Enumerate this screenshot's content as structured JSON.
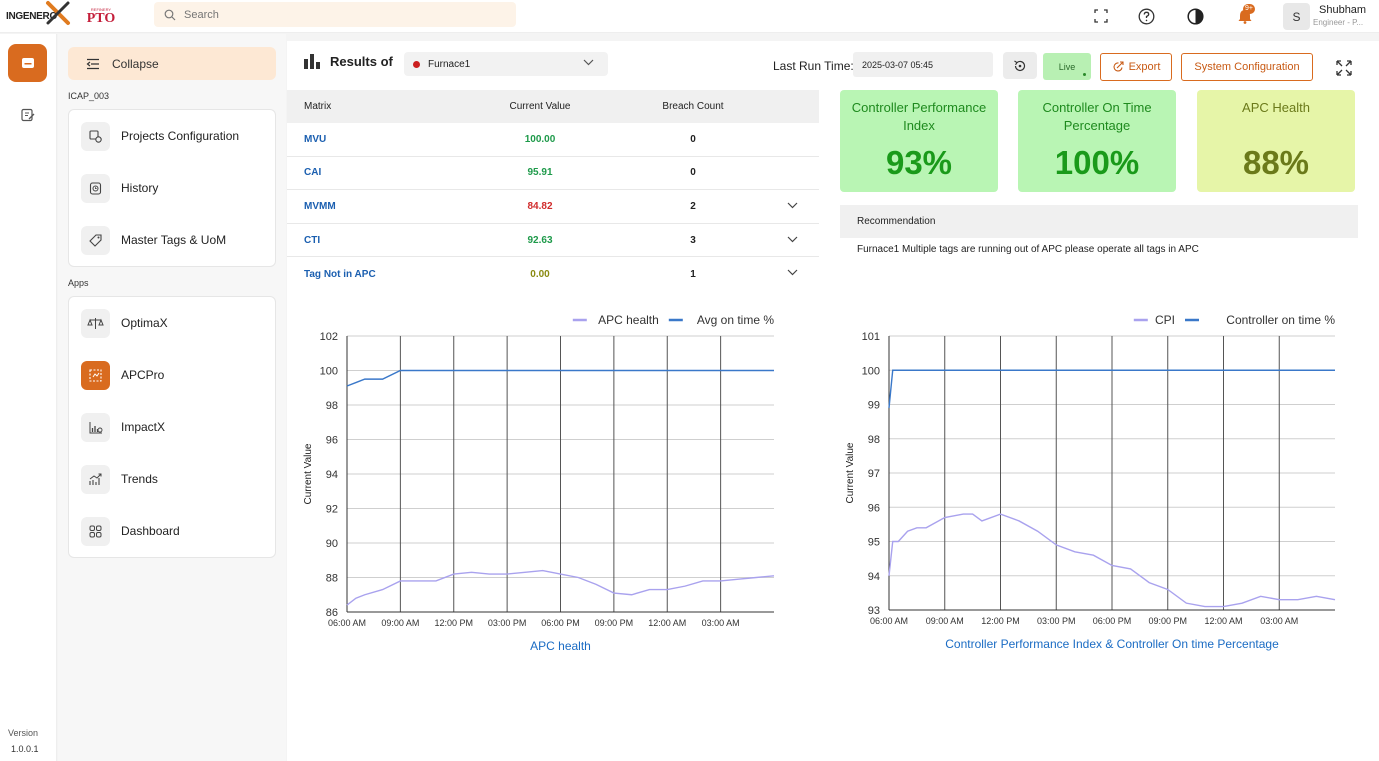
{
  "brand": {
    "logo_text": "INGENERO",
    "partner_big": "PTO",
    "partner_small": "REFINERY"
  },
  "search": {
    "placeholder": "Search"
  },
  "user": {
    "initial": "S",
    "name": "Shubham",
    "role": "Engineer - P..."
  },
  "notifications": {
    "badge": "9+"
  },
  "version": {
    "label": "Version",
    "number": "1.0.0.1"
  },
  "sidebar": {
    "collapse_label": "Collapse",
    "project_label": "ICAP_003",
    "apps_label": "Apps",
    "project_items": [
      {
        "label": "Projects Configuration",
        "icon": "gear-cube-icon"
      },
      {
        "label": "History",
        "icon": "history-icon"
      },
      {
        "label": "Master Tags & UoM",
        "icon": "tag-icon"
      }
    ],
    "app_items": [
      {
        "label": "OptimaX",
        "icon": "scale-icon"
      },
      {
        "label": "APCPro",
        "icon": "apc-icon",
        "active": true
      },
      {
        "label": "ImpactX",
        "icon": "impact-chart-icon"
      },
      {
        "label": "Trends",
        "icon": "trend-icon"
      },
      {
        "label": "Dashboard",
        "icon": "dashboard-grid-icon"
      }
    ]
  },
  "header": {
    "title": "Results of",
    "selected_unit": "Furnace1",
    "last_run_label": "Last Run Time:",
    "last_run_value": "2025-03-07 05:45",
    "live_label": "Live",
    "export_label": "Export",
    "system_config_label": "System Configuration"
  },
  "table": {
    "columns": [
      "Matrix",
      "Current Value",
      "Breach Count"
    ],
    "rows": [
      {
        "matrix": "MVU",
        "value": "100.00",
        "breach": "0",
        "value_color": "#1e9a4a",
        "expandable": false
      },
      {
        "matrix": "CAI",
        "value": "95.91",
        "breach": "0",
        "value_color": "#1e9a4a",
        "expandable": false
      },
      {
        "matrix": "MVMM",
        "value": "84.82",
        "breach": "2",
        "value_color": "#d02b2b",
        "expandable": true
      },
      {
        "matrix": "CTI",
        "value": "92.63",
        "breach": "3",
        "value_color": "#1e9a4a",
        "expandable": true
      },
      {
        "matrix": "Tag Not in APC",
        "value": "0.00",
        "breach": "1",
        "value_color": "#8a8a10",
        "expandable": true
      }
    ]
  },
  "kpis": [
    {
      "label": "Controller Performance Index",
      "value": "93%",
      "bg": "#b9f5b4"
    },
    {
      "label": "Controller On Time Percentage",
      "value": "100%",
      "bg": "#b9f5b4"
    },
    {
      "label": "APC Health",
      "value": "88%",
      "bg": "#e6f5a8"
    }
  ],
  "recommendation": {
    "heading": "Recommendation",
    "text": "Furnace1 Multiple tags are running out of APC please operate all tags in APC"
  },
  "chart_data": [
    {
      "type": "line",
      "title": "APC health",
      "ylabel": "Current Value",
      "ylim": [
        86,
        102
      ],
      "yticks": [
        86,
        88,
        90,
        92,
        94,
        96,
        98,
        100,
        102
      ],
      "xtick_labels": [
        "06:00 AM",
        "09:00 AM",
        "12:00 PM",
        "03:00 PM",
        "06:00 PM",
        "09:00 PM",
        "12:00 AM",
        "03:00 AM"
      ],
      "x_range_hours": [
        0,
        24
      ],
      "grid": true,
      "legend_position": "top-right",
      "series": [
        {
          "name": "APC health",
          "color": "#a9a2ee",
          "x": [
            0,
            0.5,
            1,
            2,
            3,
            4,
            5,
            6,
            7,
            8,
            9,
            10,
            11,
            12,
            13,
            14,
            15,
            16,
            17,
            18,
            19,
            20,
            21,
            22,
            23,
            24
          ],
          "y": [
            86.4,
            86.8,
            87.0,
            87.3,
            87.8,
            87.8,
            87.8,
            88.2,
            88.3,
            88.2,
            88.2,
            88.3,
            88.4,
            88.2,
            88.0,
            87.6,
            87.1,
            87.0,
            87.3,
            87.3,
            87.5,
            87.8,
            87.8,
            87.9,
            88.0,
            88.1
          ]
        },
        {
          "name": "Avg on time %",
          "color": "#3a78c9",
          "x": [
            0,
            0.5,
            1,
            2,
            3,
            4,
            6,
            9,
            12,
            15,
            18,
            21,
            24
          ],
          "y": [
            99.1,
            99.3,
            99.5,
            99.5,
            100,
            100,
            100,
            100,
            100,
            100,
            100,
            100,
            100
          ]
        }
      ]
    },
    {
      "type": "line",
      "title": "Controller Performance Index & Controller On time Percentage",
      "ylabel": "Current Value",
      "ylim": [
        93,
        101
      ],
      "yticks": [
        93,
        94,
        95,
        96,
        97,
        98,
        99,
        100,
        101
      ],
      "xtick_labels": [
        "06:00 AM",
        "09:00 AM",
        "12:00 PM",
        "03:00 PM",
        "06:00 PM",
        "09:00 PM",
        "12:00 AM",
        "03:00 AM"
      ],
      "x_range_hours": [
        0,
        24
      ],
      "grid": true,
      "legend_position": "top-right",
      "series": [
        {
          "name": "CPI",
          "color": "#a9a2ee",
          "x": [
            0,
            0.2,
            0.5,
            1,
            1.5,
            2,
            3,
            4,
            4.5,
            5,
            6,
            7,
            8,
            9,
            10,
            11,
            12,
            13,
            14,
            15,
            16,
            17,
            18,
            19,
            20,
            21,
            22,
            23,
            24
          ],
          "y": [
            94.0,
            95.0,
            95.0,
            95.3,
            95.4,
            95.4,
            95.7,
            95.8,
            95.8,
            95.6,
            95.8,
            95.6,
            95.3,
            94.9,
            94.7,
            94.6,
            94.3,
            94.2,
            93.8,
            93.6,
            93.2,
            93.1,
            93.1,
            93.2,
            93.4,
            93.3,
            93.3,
            93.4,
            93.3
          ]
        },
        {
          "name": "Controller on time %",
          "color": "#3a78c9",
          "x": [
            0,
            0.2,
            0.5,
            3,
            6,
            9,
            12,
            15,
            18,
            21,
            24
          ],
          "y": [
            98.9,
            100,
            100,
            100,
            100,
            100,
            100,
            100,
            100,
            100,
            100
          ]
        }
      ]
    }
  ]
}
